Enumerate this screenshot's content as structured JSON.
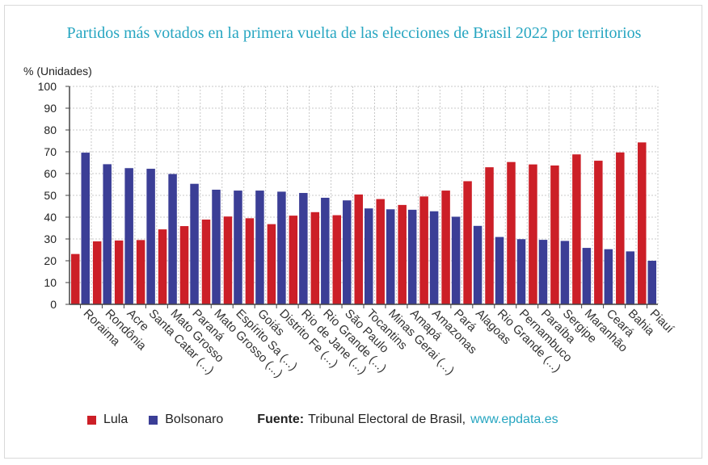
{
  "chart_data": {
    "type": "bar",
    "title": "Partidos más votados en la primera vuelta de las elecciones de Brasil 2022 por territorios",
    "ylabel": "% (Unidades)",
    "xlabel": "",
    "ylim": [
      0,
      100
    ],
    "yticks": [
      0,
      10,
      20,
      30,
      40,
      50,
      60,
      70,
      80,
      90,
      100
    ],
    "grid": true,
    "categories": [
      "Roraima",
      "Rondônia",
      "Acre",
      "Santa Catar (...)",
      "Mato Grosso",
      "Paraná",
      "Mato Grosso (...)",
      "Espírito Sa (...)",
      "Goiás",
      "Distrito Fe (...)",
      "Rio de Jane (...)",
      "Rio Grande (...)",
      "São Paulo",
      "Tocantins",
      "Minas Gerai (...)",
      "Amapá",
      "Amazonas",
      "Pará",
      "Alagoas",
      "Rio Grande (...)",
      "Pernambuco",
      "Paraíba",
      "Sergipe",
      "Maranhão",
      "Ceará",
      "Bahia",
      "Piauí"
    ],
    "series": [
      {
        "name": "Lula",
        "color": "#cc1f27",
        "values": [
          23.1,
          28.9,
          29.3,
          29.5,
          34.4,
          35.9,
          38.9,
          40.3,
          39.5,
          36.8,
          40.7,
          42.3,
          40.9,
          50.4,
          48.3,
          45.6,
          49.5,
          52.2,
          56.5,
          62.9,
          65.3,
          64.2,
          63.7,
          68.8,
          65.9,
          69.7,
          74.3
        ]
      },
      {
        "name": "Bolsonaro",
        "color": "#3b3e96",
        "values": [
          69.6,
          64.3,
          62.5,
          62.2,
          59.8,
          55.3,
          52.6,
          52.2,
          52.2,
          51.7,
          51.1,
          48.9,
          47.7,
          44.0,
          43.6,
          43.4,
          42.7,
          40.2,
          36.0,
          30.9,
          29.9,
          29.6,
          29.1,
          25.9,
          25.3,
          24.3,
          20.0
        ]
      }
    ]
  },
  "legend": {
    "lula": "Lula",
    "bolsonaro": "Bolsonaro"
  },
  "source": {
    "label": "Fuente:",
    "text": "Tribunal Electoral de Brasil,",
    "link": "www.epdata.es"
  }
}
